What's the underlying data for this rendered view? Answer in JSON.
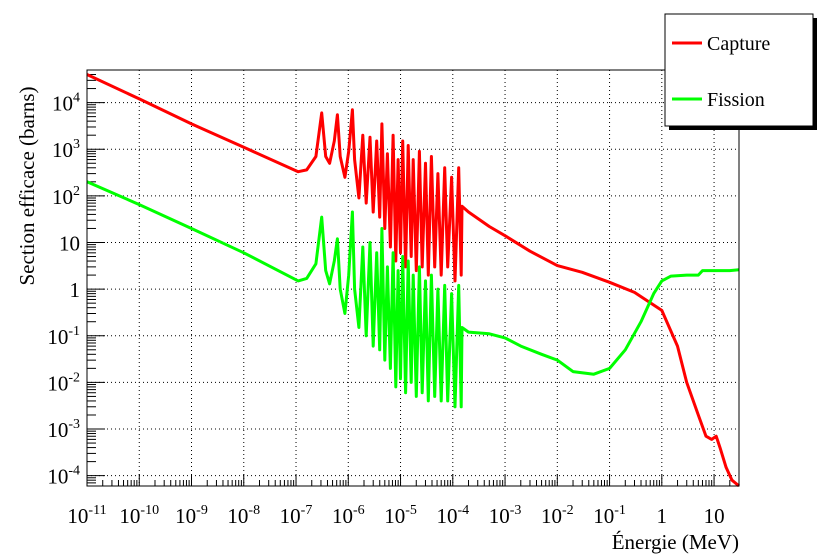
{
  "chart_data": {
    "type": "line",
    "title": "",
    "xlabel": "Énergie (MeV)",
    "ylabel": "Section efficace (barns)",
    "x_scale": "log",
    "y_scale": "log",
    "xlim": [
      1e-11,
      30
    ],
    "ylim": [
      6e-05,
      50000
    ],
    "grid": true,
    "legend_position": "top-right",
    "x_ticks": [
      {
        "value": 1e-11,
        "base": "10",
        "exp": "-11"
      },
      {
        "value": 1e-10,
        "base": "10",
        "exp": "-10"
      },
      {
        "value": 1e-09,
        "base": "10",
        "exp": "-9"
      },
      {
        "value": 1e-08,
        "base": "10",
        "exp": "-8"
      },
      {
        "value": 1e-07,
        "base": "10",
        "exp": "-7"
      },
      {
        "value": 1e-06,
        "base": "10",
        "exp": "-6"
      },
      {
        "value": 1e-05,
        "base": "10",
        "exp": "-5"
      },
      {
        "value": 0.0001,
        "base": "10",
        "exp": "-4"
      },
      {
        "value": 0.001,
        "base": "10",
        "exp": "-3"
      },
      {
        "value": 0.01,
        "base": "10",
        "exp": "-2"
      },
      {
        "value": 0.1,
        "base": "10",
        "exp": "-1"
      },
      {
        "value": 1,
        "base": "1",
        "exp": ""
      },
      {
        "value": 10,
        "base": "10",
        "exp": ""
      }
    ],
    "y_ticks": [
      {
        "value": 0.0001,
        "base": "10",
        "exp": "-4"
      },
      {
        "value": 0.001,
        "base": "10",
        "exp": "-3"
      },
      {
        "value": 0.01,
        "base": "10",
        "exp": "-2"
      },
      {
        "value": 0.1,
        "base": "10",
        "exp": "-1"
      },
      {
        "value": 1,
        "base": "1",
        "exp": ""
      },
      {
        "value": 10,
        "base": "10",
        "exp": ""
      },
      {
        "value": 100,
        "base": "10",
        "exp": "2"
      },
      {
        "value": 1000,
        "base": "10",
        "exp": "3"
      },
      {
        "value": 10000,
        "base": "10",
        "exp": "4"
      }
    ],
    "series": [
      {
        "name": "Capture",
        "color": "#ff0000",
        "points": [
          [
            1e-11,
            40000
          ],
          [
            1e-10,
            12000
          ],
          [
            1e-09,
            3500
          ],
          [
            1e-08,
            1100
          ],
          [
            1.1e-07,
            330
          ],
          [
            1.6e-07,
            360
          ],
          [
            2.4e-07,
            700
          ],
          [
            3.1e-07,
            6000
          ],
          [
            3.7e-07,
            700
          ],
          [
            4.4e-07,
            500
          ],
          [
            5.4e-07,
            1500
          ],
          [
            6.2e-07,
            5500
          ],
          [
            7e-07,
            700
          ],
          [
            8.6e-07,
            250
          ],
          [
            1.02e-06,
            900
          ],
          [
            1.2e-06,
            7000
          ],
          [
            1.32e-06,
            600
          ],
          [
            1.6e-06,
            90
          ],
          [
            1.9e-06,
            2000
          ],
          [
            2.2e-06,
            70
          ],
          [
            2.6e-06,
            1800
          ],
          [
            3e-06,
            45
          ],
          [
            3.5e-06,
            1500
          ],
          [
            4e-06,
            35
          ],
          [
            4.4e-06,
            3500
          ],
          [
            5e-06,
            20
          ],
          [
            5.6e-06,
            800
          ],
          [
            6.4e-06,
            8
          ],
          [
            7.2e-06,
            2000
          ],
          [
            8.1e-06,
            4
          ],
          [
            9e-06,
            600
          ],
          [
            1e-05,
            6
          ],
          [
            1.1e-05,
            1500
          ],
          [
            1.25e-05,
            3
          ],
          [
            1.4e-05,
            1200
          ],
          [
            1.6e-05,
            5
          ],
          [
            1.75e-05,
            600
          ],
          [
            2e-05,
            2.5
          ],
          [
            2.3e-05,
            900
          ],
          [
            2.6e-05,
            3
          ],
          [
            3e-05,
            500
          ],
          [
            3.4e-05,
            2
          ],
          [
            3.9e-05,
            700
          ],
          [
            4.5e-05,
            3
          ],
          [
            5.2e-05,
            300
          ],
          [
            6e-05,
            2
          ],
          [
            7e-05,
            400
          ],
          [
            8e-05,
            3
          ],
          [
            9.5e-05,
            250
          ],
          [
            0.00011,
            1.5
          ],
          [
            0.00013,
            400
          ],
          [
            0.000145,
            2
          ],
          [
            0.00015,
            60
          ],
          [
            0.0002,
            45
          ],
          [
            0.0005,
            22
          ],
          [
            0.001,
            14
          ],
          [
            0.003,
            6.5
          ],
          [
            0.01,
            3.2
          ],
          [
            0.03,
            2.3
          ],
          [
            0.1,
            1.4
          ],
          [
            0.3,
            0.85
          ],
          [
            1,
            0.35
          ],
          [
            2,
            0.06
          ],
          [
            3,
            0.01
          ],
          [
            5,
            0.002
          ],
          [
            7,
            0.0007
          ],
          [
            9,
            0.0006
          ],
          [
            11,
            0.0007
          ],
          [
            13,
            0.0004
          ],
          [
            17,
            0.00015
          ],
          [
            22,
            8e-05
          ],
          [
            30,
            6e-05
          ]
        ]
      },
      {
        "name": "Fission",
        "color": "#00ff00",
        "points": [
          [
            1e-11,
            200
          ],
          [
            1e-10,
            65
          ],
          [
            1e-09,
            20
          ],
          [
            1e-08,
            6
          ],
          [
            1.1e-07,
            1.5
          ],
          [
            1.6e-07,
            1.7
          ],
          [
            2.4e-07,
            3.5
          ],
          [
            3.1e-07,
            35
          ],
          [
            3.7e-07,
            2.5
          ],
          [
            4.4e-07,
            1.3
          ],
          [
            5.4e-07,
            4
          ],
          [
            6.2e-07,
            12
          ],
          [
            7e-07,
            1
          ],
          [
            8.6e-07,
            0.3
          ],
          [
            1.02e-06,
            2
          ],
          [
            1.2e-06,
            45
          ],
          [
            1.32e-06,
            1
          ],
          [
            1.6e-06,
            0.15
          ],
          [
            1.9e-06,
            8
          ],
          [
            2.2e-06,
            0.1
          ],
          [
            2.6e-06,
            10
          ],
          [
            3e-06,
            0.06
          ],
          [
            3.5e-06,
            6
          ],
          [
            4e-06,
            0.05
          ],
          [
            4.4e-06,
            20
          ],
          [
            5e-06,
            0.03
          ],
          [
            5.6e-06,
            3
          ],
          [
            6.4e-06,
            0.02
          ],
          [
            7.2e-06,
            6
          ],
          [
            8.1e-06,
            0.008
          ],
          [
            9e-06,
            2.5
          ],
          [
            1e-05,
            0.012
          ],
          [
            1.1e-05,
            5
          ],
          [
            1.25e-05,
            0.006
          ],
          [
            1.4e-05,
            4
          ],
          [
            1.6e-05,
            0.01
          ],
          [
            1.75e-05,
            2
          ],
          [
            2e-05,
            0.005
          ],
          [
            2.3e-05,
            3
          ],
          [
            2.6e-05,
            0.006
          ],
          [
            3e-05,
            1.5
          ],
          [
            3.4e-05,
            0.004
          ],
          [
            3.9e-05,
            2
          ],
          [
            4.5e-05,
            0.005
          ],
          [
            5.2e-05,
            1
          ],
          [
            6e-05,
            0.004
          ],
          [
            7e-05,
            1.2
          ],
          [
            8e-05,
            0.004
          ],
          [
            9.5e-05,
            0.8
          ],
          [
            0.00011,
            0.003
          ],
          [
            0.00013,
            1.2
          ],
          [
            0.000145,
            0.003
          ],
          [
            0.00015,
            0.15
          ],
          [
            0.0002,
            0.12
          ],
          [
            0.0005,
            0.11
          ],
          [
            0.001,
            0.09
          ],
          [
            0.002,
            0.06
          ],
          [
            0.005,
            0.04
          ],
          [
            0.01,
            0.03
          ],
          [
            0.02,
            0.017
          ],
          [
            0.05,
            0.015
          ],
          [
            0.1,
            0.02
          ],
          [
            0.2,
            0.05
          ],
          [
            0.4,
            0.2
          ],
          [
            0.7,
            0.8
          ],
          [
            1,
            1.5
          ],
          [
            1.5,
            1.9
          ],
          [
            3,
            2
          ],
          [
            5,
            2
          ],
          [
            6,
            2.5
          ],
          [
            10,
            2.5
          ],
          [
            20,
            2.5
          ],
          [
            30,
            2.6
          ]
        ]
      }
    ]
  }
}
